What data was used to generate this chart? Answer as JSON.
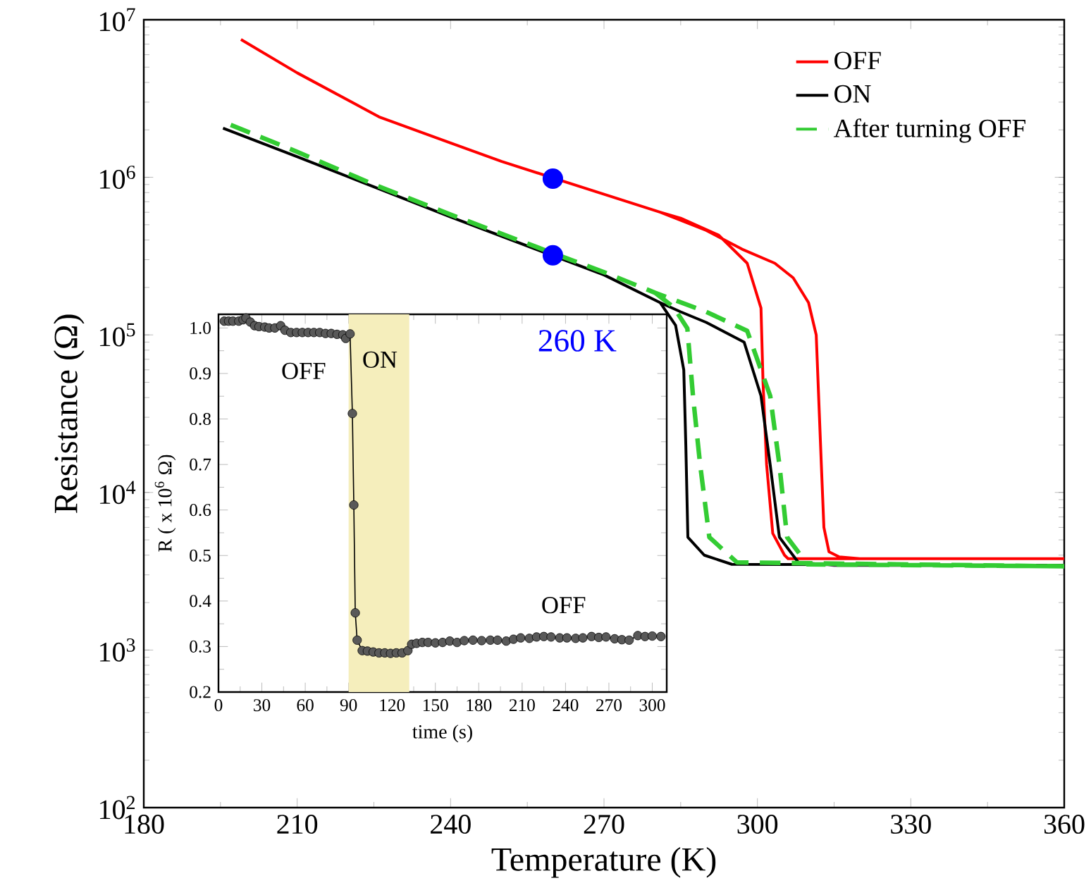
{
  "chart_data": [
    {
      "type": "line",
      "xlabel": "Temperature (K)",
      "ylabel": "Resistance (Ω)",
      "log": "y",
      "legend": "top right",
      "xlim": [
        180,
        360
      ],
      "xticks": [
        180,
        210,
        240,
        270,
        300,
        330,
        360
      ],
      "ylim": [
        100,
        10000000
      ],
      "yticks": [
        {
          "value": 100,
          "label": "10$^{2}$"
        },
        {
          "value": 1000,
          "label": "10$^{3}$"
        },
        {
          "value": 10000,
          "label": "10$^{4}$"
        },
        {
          "value": 100000,
          "label": "10$^{5}$"
        },
        {
          "value": 1000000,
          "label": "10$^{6}$"
        },
        {
          "value": 10000000,
          "label": "10$^{7}$"
        }
      ],
      "series": [
        {
          "name": "OFF",
          "color": "#ff0000",
          "x": [
            199,
            210,
            226,
            240,
            250,
            270,
            281,
            290,
            297,
            303.4,
            307,
            310,
            311.5,
            312.5,
            313,
            314,
            316,
            320,
            360,
            306,
            305.3,
            303,
            301.8,
            301.1,
            300.7,
            298,
            292.4,
            285,
            281
          ],
          "values": [
            7500000,
            4600000,
            2420000,
            1650000,
            1260000,
            780000,
            600000,
            460000,
            350000,
            285000,
            230000,
            160000,
            100000,
            15000,
            6000,
            4200,
            3900,
            3800,
            3800,
            3800,
            4000,
            5500,
            15000,
            50000,
            148000,
            285000,
            430000,
            550000,
            600000
          ]
        },
        {
          "name": "ON",
          "color": "#000000",
          "x": [
            195.5,
            210,
            225,
            240,
            270,
            281,
            285,
            290,
            297.4,
            300.7,
            302.5,
            304.3,
            308,
            315,
            360,
            295,
            289.6,
            286.4,
            286,
            285.6,
            284,
            281
          ],
          "values": [
            2050000,
            1350000,
            870000,
            560000,
            240000,
            160000,
            140000,
            120000,
            90000,
            41000,
            15000,
            5200,
            3600,
            3450,
            3450,
            3500,
            4000,
            5200,
            20000,
            60000,
            115000,
            160000
          ]
        },
        {
          "name": "After turning OFF",
          "color": "#33cc33",
          "line_style": "dashed",
          "x": [
            197,
            210,
            225,
            240,
            260,
            270,
            280,
            290,
            298,
            302.5,
            304.3,
            305.8,
            309.8,
            360,
            296,
            290.6,
            288.8,
            287.4,
            286.3,
            283.6,
            280
          ],
          "values": [
            2150000,
            1450000,
            900000,
            580000,
            330000,
            250000,
            185000,
            140000,
            106000,
            41000,
            15000,
            5200,
            3500,
            3400,
            3600,
            5200,
            15000,
            41000,
            110000,
            150000,
            185000
          ]
        },
        {
          "type": "scatter",
          "color": "#0000ff",
          "x": [
            260,
            260
          ],
          "values": [
            980000,
            320000
          ]
        }
      ]
    },
    {
      "type": "line",
      "marker": "circle",
      "xlabel": "time (s)",
      "ylabel": "R ( x 10$^{6}$ Ω)",
      "xlim": [
        0,
        310
      ],
      "xticks": [
        0,
        30,
        60,
        90,
        120,
        150,
        180,
        210,
        240,
        270,
        300
      ],
      "ylim": [
        0.2,
        1.03
      ],
      "yticks": [
        0.2,
        0.3,
        0.4,
        0.5,
        0.6,
        0.7,
        0.8,
        0.9,
        {
          "value": 1,
          "label": "1.0"
        }
      ],
      "bands": [
        {
          "axis": "x",
          "from": 90,
          "to": 132,
          "color": "#f5eebc"
        }
      ],
      "annotations": [
        "OFF",
        "ON",
        "OFF",
        "260 K"
      ],
      "series": [
        {
          "color": "#000000",
          "x": [
            4,
            7,
            10,
            14,
            17,
            19,
            22,
            25,
            28,
            32,
            35,
            39,
            43,
            46,
            50,
            54,
            58,
            62,
            66,
            70,
            74,
            78,
            82,
            86,
            88,
            91,
            92.6,
            93.6,
            94.6,
            95.9,
            99.4,
            103,
            107,
            111,
            115,
            119,
            123,
            127,
            131,
            133.6,
            137,
            141,
            145,
            150,
            155,
            160,
            165,
            170,
            176,
            182,
            188,
            193,
            199,
            204,
            209,
            215,
            220,
            225,
            230,
            236,
            241,
            247,
            252,
            258,
            263,
            268,
            274,
            279,
            284,
            290,
            295,
            300,
            306
          ],
          "values": [
            1.015,
            1.015,
            1.015,
            1.015,
            1.018,
            1.022,
            1.013,
            1.005,
            1.003,
            1.002,
            1.0,
            1.0,
            1.005,
            0.995,
            0.99,
            0.99,
            0.99,
            0.99,
            0.99,
            0.99,
            0.988,
            0.988,
            0.986,
            0.985,
            0.977,
            0.987,
            0.812,
            0.611,
            0.374,
            0.314,
            0.291,
            0.29,
            0.288,
            0.286,
            0.286,
            0.285,
            0.286,
            0.286,
            0.291,
            0.305,
            0.307,
            0.309,
            0.309,
            0.308,
            0.309,
            0.312,
            0.309,
            0.313,
            0.314,
            0.313,
            0.314,
            0.314,
            0.312,
            0.316,
            0.319,
            0.318,
            0.321,
            0.322,
            0.321,
            0.319,
            0.319,
            0.318,
            0.319,
            0.322,
            0.32,
            0.321,
            0.317,
            0.315,
            0.314,
            0.324,
            0.322,
            0.323,
            0.322
          ]
        }
      ]
    }
  ]
}
